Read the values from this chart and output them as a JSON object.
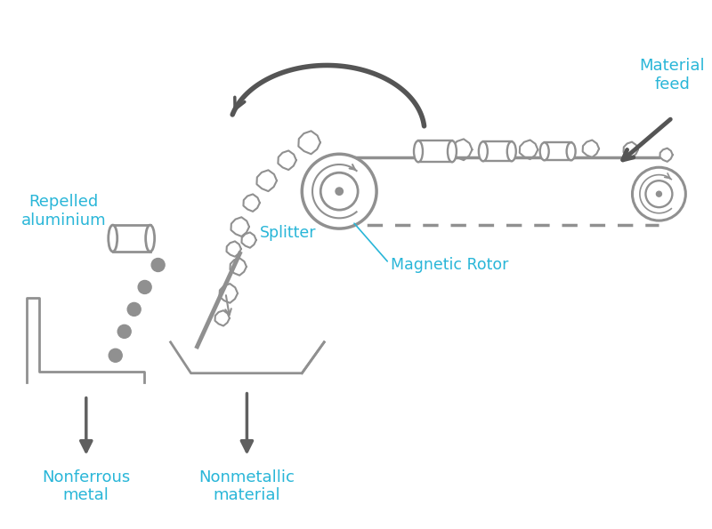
{
  "bg_color": "#ffffff",
  "gray_color": "#909090",
  "dark_gray": "#555555",
  "arrow_gray": "#606060",
  "cyan_color": "#29b6d8",
  "line_width": 2.0,
  "labels": {
    "material_feed": "Material\nfeed",
    "repelled": "Repelled\naluminium",
    "splitter": "Splitter",
    "magnetic_rotor": "Magnetic Rotor",
    "nonferrous": "Nonferrous\nmetal",
    "nonmetallic": "Nonmetallic\nmaterial"
  }
}
